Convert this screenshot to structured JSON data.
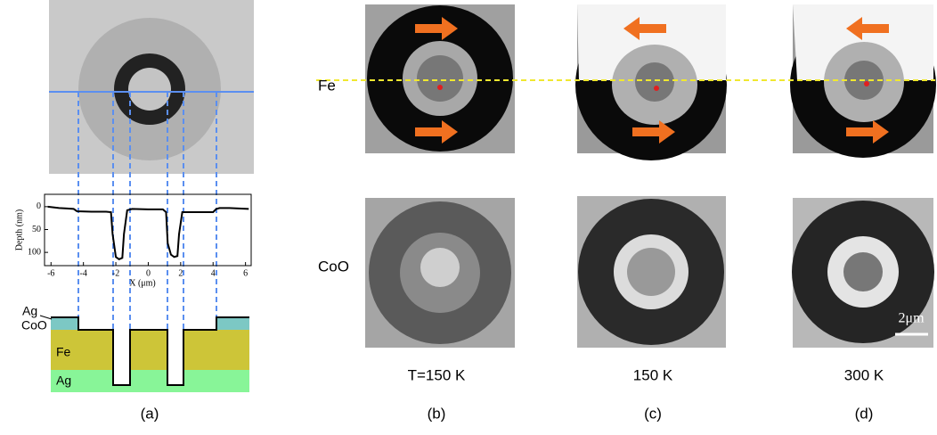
{
  "panel_a": {
    "label": "(a)",
    "profile": {
      "type": "line",
      "xlabel": "X (μm)",
      "ylabel": "Depth (nm)",
      "x": [
        -6.2,
        -5.5,
        -5,
        -4.6,
        -4.4,
        -3.5,
        -2.6,
        -2.3,
        -2.2,
        -2.0,
        -1.8,
        -1.6,
        -1.5,
        -1.3,
        -1.0,
        0,
        0.9,
        1.1,
        1.2,
        1.4,
        1.6,
        1.8,
        1.9,
        2.1,
        3,
        4,
        4.2,
        4.4,
        5,
        6.2
      ],
      "values": [
        0,
        3,
        4,
        5,
        10,
        11,
        11,
        12,
        60,
        110,
        115,
        112,
        60,
        8,
        5,
        6,
        6,
        12,
        80,
        105,
        110,
        108,
        60,
        12,
        12,
        12,
        5,
        3,
        3,
        5
      ],
      "color": "#000000",
      "xlim": [
        -6.4,
        6.35
      ],
      "ylim": [
        -27,
        129
      ],
      "xticks": [
        -6,
        -4,
        -2,
        0,
        2,
        4,
        6
      ],
      "yticks": [
        0,
        50,
        100
      ]
    },
    "layers": {
      "ag_top": "Ag",
      "coo": "CoO",
      "fe": "Fe",
      "ag_bottom": "Ag"
    }
  },
  "rows": [
    "Fe",
    "CoO"
  ],
  "panels": [
    {
      "label": "(b)",
      "temperature": "T=150 K"
    },
    {
      "label": "(c)",
      "temperature": "150 K"
    },
    {
      "label": "(d)",
      "temperature": "300 K"
    }
  ],
  "scale_bar": "2μm"
}
